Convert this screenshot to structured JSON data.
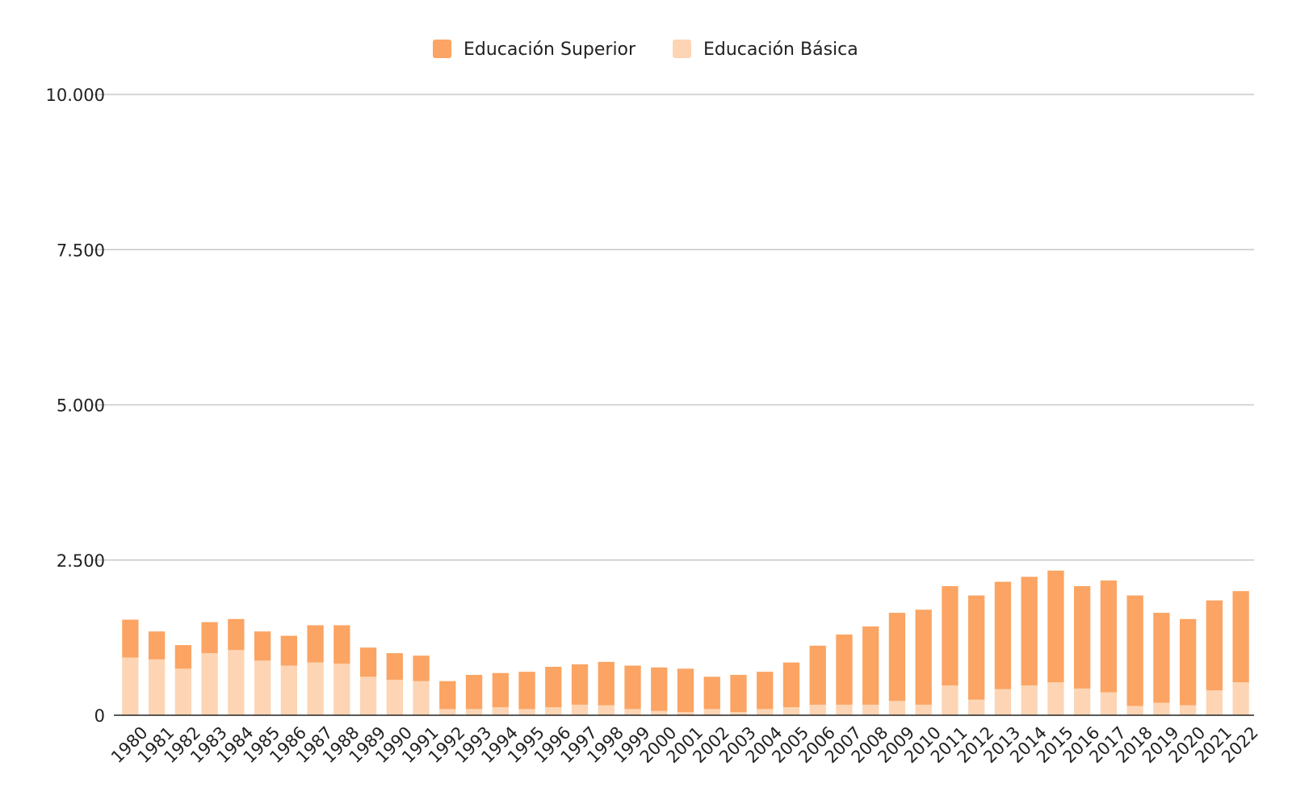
{
  "chart_data": {
    "type": "bar",
    "stacked": true,
    "title": "",
    "xlabel": "",
    "ylabel": "",
    "ylim": [
      0,
      10000
    ],
    "y_ticks": [
      0,
      2500,
      5000,
      7500,
      10000
    ],
    "y_tick_labels": [
      "0",
      "2.500",
      "5.000",
      "7.500",
      "10.000"
    ],
    "grid": true,
    "legend_position": "top-center",
    "categories": [
      "1980",
      "1981",
      "1982",
      "1983",
      "1984",
      "1985",
      "1986",
      "1987",
      "1988",
      "1989",
      "1990",
      "1991",
      "1992",
      "1993",
      "1994",
      "1995",
      "1996",
      "1997",
      "1998",
      "1999",
      "2000",
      "2001",
      "2002",
      "2003",
      "2004",
      "2005",
      "2006",
      "2007",
      "2008",
      "2009",
      "2010",
      "2011",
      "2012",
      "2013",
      "2014",
      "2015",
      "2016",
      "2017",
      "2018",
      "2019",
      "2020",
      "2021",
      "2022"
    ],
    "series": [
      {
        "name": "Educación Básica",
        "color": "#fdd5b4",
        "values": [
          930,
          900,
          750,
          1000,
          1050,
          880,
          800,
          850,
          830,
          620,
          570,
          550,
          100,
          100,
          130,
          100,
          130,
          170,
          160,
          100,
          70,
          50,
          100,
          50,
          100,
          130,
          170,
          170,
          170,
          230,
          170,
          480,
          250,
          420,
          480,
          530,
          430,
          370,
          150,
          200,
          160,
          400,
          530
        ]
      },
      {
        "name": "Educación Superior",
        "color": "#fba463",
        "values": [
          610,
          450,
          380,
          500,
          500,
          470,
          480,
          600,
          620,
          470,
          430,
          410,
          450,
          550,
          550,
          600,
          650,
          650,
          700,
          700,
          700,
          700,
          520,
          600,
          600,
          720,
          950,
          1130,
          1260,
          1420,
          1530,
          1600,
          1680,
          1730,
          1750,
          1800,
          1650,
          1800,
          1780,
          1450,
          1390,
          1450,
          1470
        ]
      }
    ]
  }
}
